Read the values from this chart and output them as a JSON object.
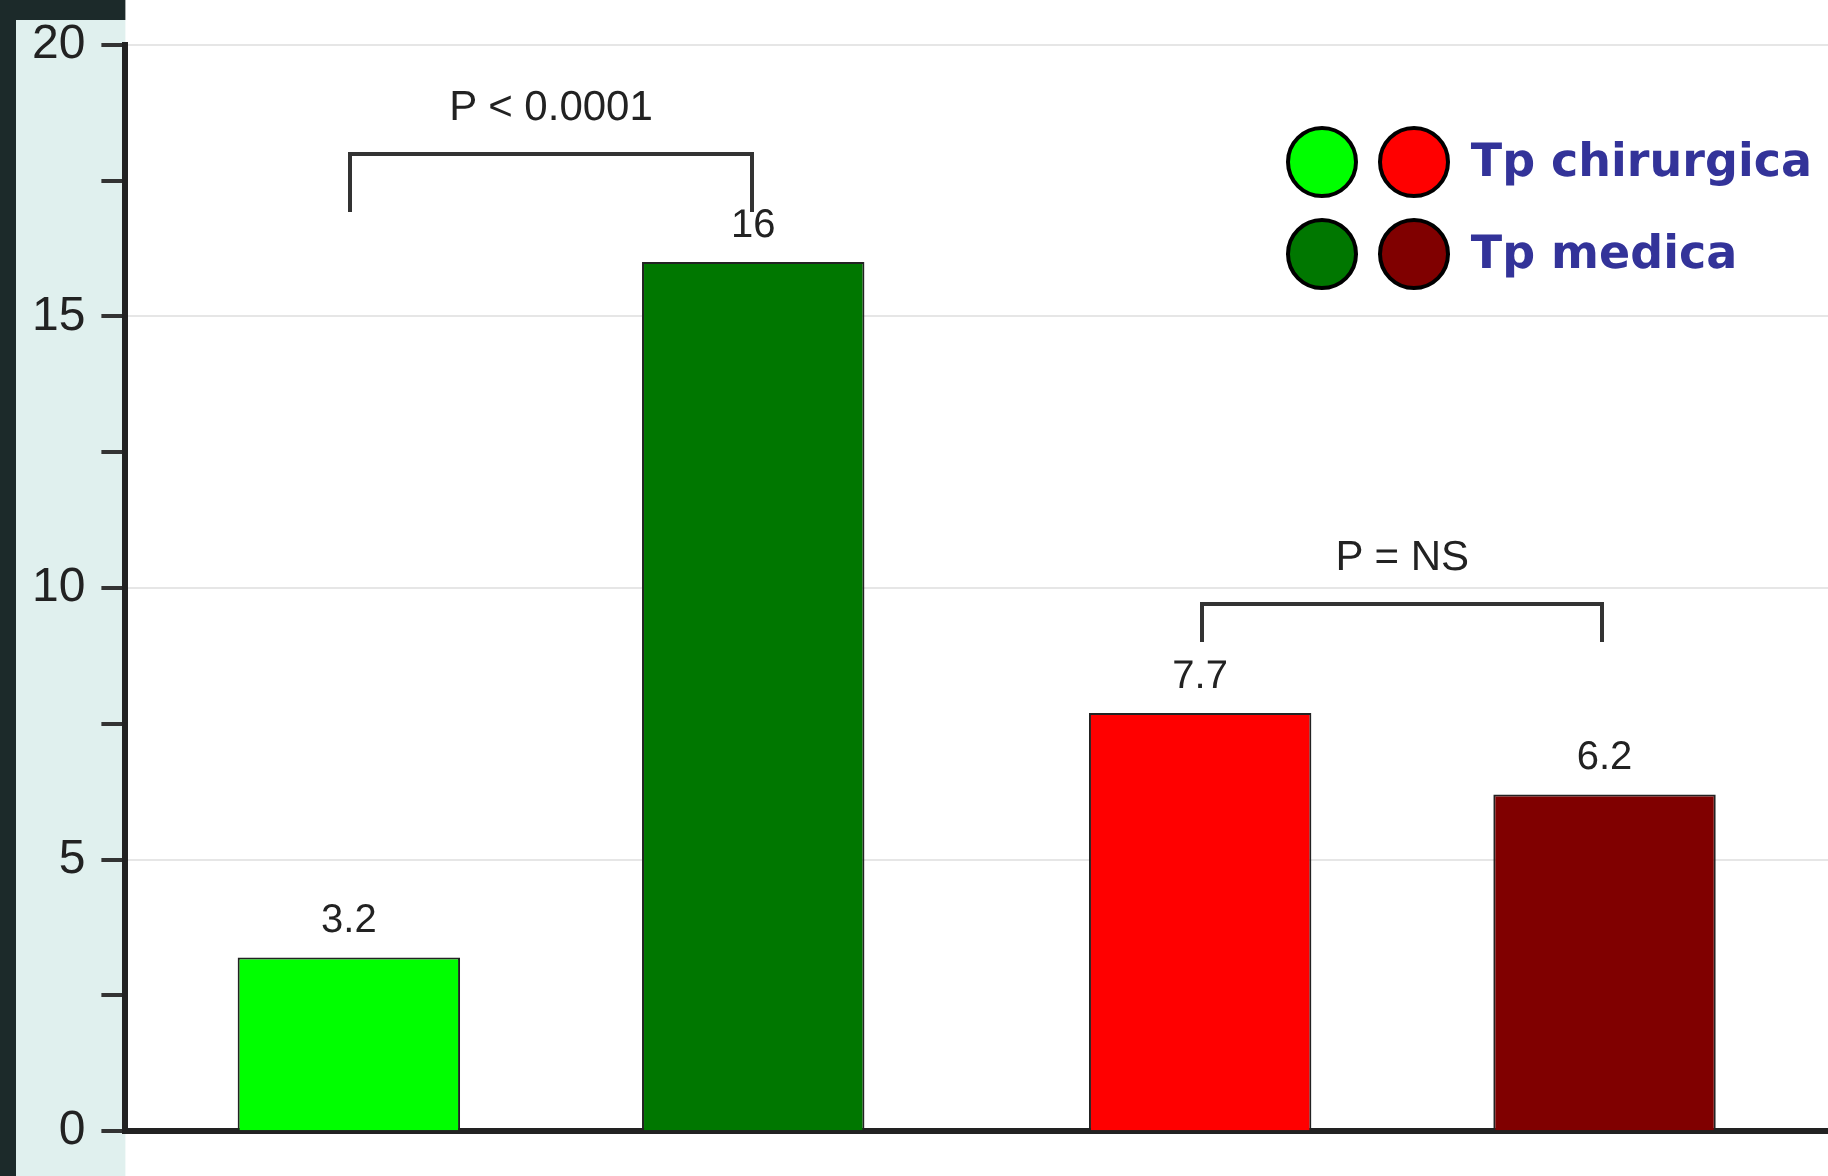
{
  "chart_data": {
    "type": "bar",
    "categories": [
      null,
      null
    ],
    "series": [
      {
        "name": "Tp chirurgica",
        "colors": [
          "#00ff00",
          "#ff0000"
        ],
        "values": [
          3.2,
          7.7
        ]
      },
      {
        "name": "Tp medica",
        "colors": [
          "#007700",
          "#800000"
        ],
        "values": [
          16,
          6.2
        ]
      }
    ],
    "ylim": [
      0,
      20
    ],
    "yticks": [
      0,
      {
        "value": 2.5,
        "label": null
      },
      5,
      {
        "value": 7.5,
        "label": null
      },
      10,
      {
        "value": 12.5,
        "label": null
      },
      15,
      {
        "value": 17.5,
        "label": null
      },
      20
    ],
    "grid": "y",
    "legend": "top right",
    "data_labels": true,
    "annotations": [
      "P < 0.0001",
      "P = NS"
    ]
  }
}
